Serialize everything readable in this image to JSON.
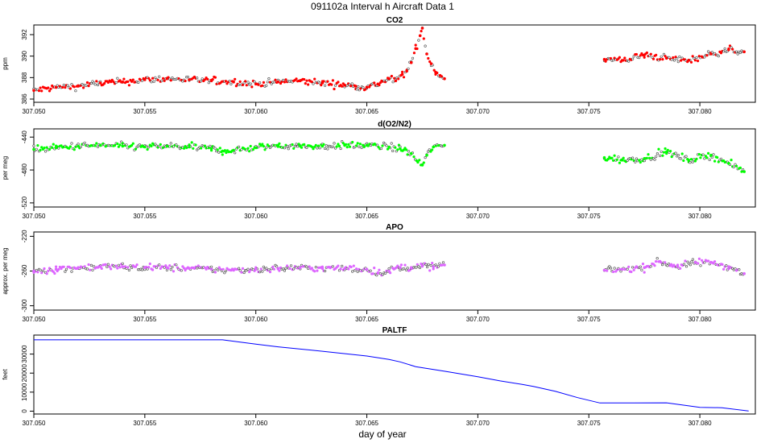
{
  "figure": {
    "title": "091102a   Interval h Aircraft Data 1",
    "xlabel": "day of year"
  },
  "chart_data": [
    {
      "type": "scatter",
      "title": "CO2",
      "ylabel": "ppm",
      "xlim": [
        307.05,
        307.0825
      ],
      "ylim": [
        385.7,
        392.9
      ],
      "xticks": [
        307.05,
        307.055,
        307.06,
        307.065,
        307.07,
        307.075,
        307.08
      ],
      "xtick_labels": [
        "307.050",
        "307.055",
        "307.060",
        "307.065",
        "307.070",
        "307.075",
        "307.080"
      ],
      "yticks": [
        386,
        388,
        390,
        392
      ],
      "ytick_labels": [
        "386",
        "388",
        "390",
        "392"
      ],
      "grid": false,
      "color": "#ff0000",
      "series": [
        {
          "x": [
            307.05,
            307.051,
            307.052,
            307.053,
            307.054,
            307.055,
            307.056,
            307.057,
            307.058,
            307.059,
            307.06,
            307.061,
            307.062,
            307.063,
            307.064,
            307.0645,
            307.065,
            307.0655,
            307.066,
            307.0663,
            307.0666,
            307.0668,
            307.067,
            307.0672,
            307.0674,
            307.0675,
            307.0677,
            307.0679,
            307.0681,
            307.0683,
            307.0685,
            307.0757,
            307.0765,
            307.0775,
            307.0785,
            307.0795,
            307.0805,
            307.0813,
            307.082
          ],
          "y": [
            386.8,
            387.1,
            387.2,
            387.5,
            387.6,
            387.8,
            387.9,
            387.8,
            387.7,
            387.6,
            387.4,
            387.6,
            387.7,
            387.5,
            387.3,
            387.2,
            387.1,
            387.4,
            387.9,
            387.7,
            388.3,
            388.6,
            389.4,
            390.7,
            391.9,
            392.6,
            390.2,
            389.3,
            388.5,
            388.2,
            387.9,
            389.7,
            389.6,
            390.1,
            389.8,
            389.6,
            390.2,
            390.6,
            390.4
          ]
        }
      ]
    },
    {
      "type": "scatter",
      "title": "d(O2/N2)",
      "ylabel": "per meg",
      "xlim": [
        307.05,
        307.0825
      ],
      "ylim": [
        -525,
        -430
      ],
      "xticks": [
        307.05,
        307.055,
        307.06,
        307.065,
        307.07,
        307.075,
        307.08
      ],
      "xtick_labels": [
        "307.050",
        "307.055",
        "307.060",
        "307.065",
        "307.070",
        "307.075",
        "307.080"
      ],
      "yticks": [
        -520,
        -480,
        -440
      ],
      "ytick_labels": [
        "-520",
        "-480",
        "-440"
      ],
      "grid": false,
      "color": "#00ff00",
      "series": [
        {
          "x": [
            307.05,
            307.051,
            307.052,
            307.053,
            307.054,
            307.055,
            307.056,
            307.057,
            307.058,
            307.0585,
            307.059,
            307.06,
            307.061,
            307.062,
            307.063,
            307.064,
            307.065,
            307.066,
            307.0665,
            307.067,
            307.0673,
            307.0675,
            307.0677,
            307.068,
            307.0685,
            307.0757,
            307.0765,
            307.0775,
            307.0785,
            307.0795,
            307.0805,
            307.0813,
            307.082
          ],
          "y": [
            -455,
            -453,
            -451,
            -450,
            -451,
            -452,
            -451,
            -452,
            -454,
            -457,
            -456,
            -453,
            -450,
            -451,
            -451,
            -450,
            -450,
            -452,
            -454,
            -460,
            -470,
            -474,
            -462,
            -452,
            -450,
            -465,
            -468,
            -466,
            -458,
            -468,
            -462,
            -472,
            -482
          ]
        }
      ]
    },
    {
      "type": "scatter",
      "title": "APO",
      "ylabel": "approx. per meg",
      "xlim": [
        307.05,
        307.0825
      ],
      "ylim": [
        -305,
        -215
      ],
      "xticks": [
        307.05,
        307.055,
        307.06,
        307.065,
        307.07,
        307.075,
        307.08
      ],
      "xtick_labels": [
        "307.050",
        "307.055",
        "307.060",
        "307.065",
        "307.070",
        "307.075",
        "307.080"
      ],
      "yticks": [
        -300,
        -260,
        -220
      ],
      "ytick_labels": [
        "-300",
        "-260",
        "-220"
      ],
      "grid": false,
      "color": "#dd66ff",
      "series": [
        {
          "x": [
            307.05,
            307.051,
            307.052,
            307.053,
            307.054,
            307.055,
            307.056,
            307.057,
            307.058,
            307.059,
            307.06,
            307.061,
            307.062,
            307.063,
            307.064,
            307.065,
            307.0655,
            307.066,
            307.0665,
            307.067,
            307.0675,
            307.068,
            307.0685,
            307.0757,
            307.0765,
            307.0775,
            307.0782,
            307.079,
            307.0798,
            307.0805,
            307.0813,
            307.082
          ],
          "y": [
            -260,
            -258,
            -256,
            -255,
            -255,
            -256,
            -256,
            -257,
            -258,
            -259,
            -258,
            -257,
            -256,
            -257,
            -257,
            -258,
            -262,
            -260,
            -256,
            -256,
            -254,
            -255,
            -253,
            -259,
            -258,
            -256,
            -249,
            -255,
            -250,
            -250,
            -255,
            -263
          ]
        }
      ]
    },
    {
      "type": "line",
      "title": "PALTF",
      "ylabel": "feet",
      "xlim": [
        307.05,
        307.0825
      ],
      "ylim": [
        -1500,
        40000
      ],
      "xticks": [
        307.05,
        307.055,
        307.06,
        307.065,
        307.07,
        307.075,
        307.08
      ],
      "xtick_labels": [
        "307.050",
        "307.055",
        "307.060",
        "307.065",
        "307.070",
        "307.075",
        "307.080"
      ],
      "yticks": [
        0,
        10000,
        20000,
        30000
      ],
      "ytick_labels": [
        "0",
        "10000",
        "20000",
        "30000"
      ],
      "grid": false,
      "color": "#0000ff",
      "series": [
        {
          "x": [
            307.05,
            307.0585,
            307.06,
            307.061,
            307.063,
            307.065,
            307.066,
            307.0665,
            307.0672,
            307.0685,
            307.07,
            307.071,
            307.072,
            307.0725,
            307.0735,
            307.0745,
            307.0755,
            307.077,
            307.0785,
            307.079,
            307.08,
            307.081,
            307.0822
          ],
          "y": [
            37500,
            37500,
            35200,
            33800,
            31500,
            29000,
            27200,
            25900,
            23400,
            21000,
            18100,
            15900,
            14100,
            13000,
            10400,
            7100,
            4300,
            4300,
            4400,
            3600,
            2000,
            1800,
            50
          ]
        }
      ]
    }
  ]
}
